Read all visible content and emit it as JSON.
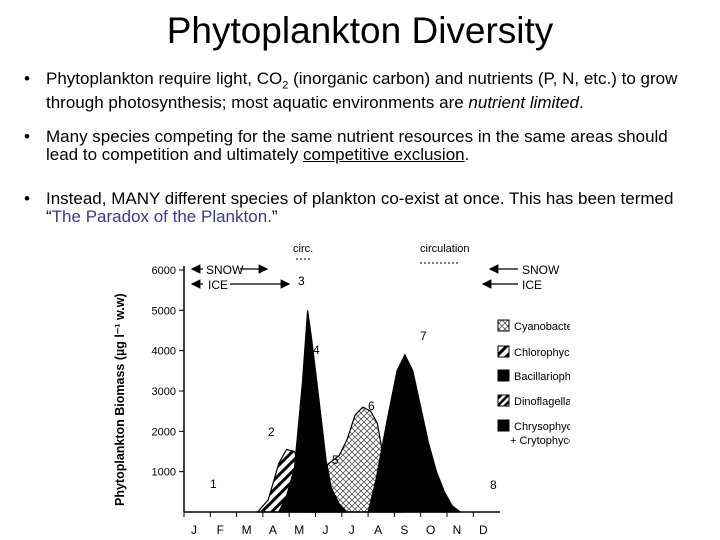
{
  "slide": {
    "title": "Phytoplankton Diversity",
    "bullets": [
      {
        "marker": "•",
        "pre": "Phytoplankton require light, CO",
        "sub": "2",
        "mid": " (inorganic carbon) and nutrients (P, N, etc.) to grow through photosynthesis; most aquatic environments are ",
        "emph": "nutrient limited",
        "post": "."
      },
      {
        "marker": "•",
        "pre": "Many species competing for the same nutrient resources in the same areas should lead to competition and ultimately ",
        "emph": "competitive exclusion",
        "post": "."
      },
      {
        "marker": "•",
        "pre": "Instead, MANY different species of plankton co-exist at once.  This has been termed “",
        "emph": "The Paradox of the Plankton.",
        "post": "”"
      }
    ]
  },
  "chart_data": {
    "type": "area",
    "ylabel": "Phytoplankton Biomass (µg l⁻¹ w.w)",
    "yticks": [
      1000,
      2000,
      3000,
      4000,
      5000,
      6000
    ],
    "ylim": [
      0,
      6200
    ],
    "months": [
      "J",
      "F",
      "M",
      "A",
      "M",
      "J",
      "J",
      "A",
      "S",
      "O",
      "N",
      "D"
    ],
    "legend": [
      {
        "label": "Cyanobacteria",
        "pattern": "hatch-light"
      },
      {
        "label": "Chlorophyceae",
        "pattern": "hatch-diagonal"
      },
      {
        "label": "Bacillariophyceae",
        "pattern": "solid"
      },
      {
        "label": "Dinoflagellates",
        "pattern": "hatch-bold"
      },
      {
        "label": "Chrysophyceae",
        "label2": "+ Crytophyceae",
        "pattern": "solid"
      }
    ],
    "annotations": {
      "snow": "SNOW",
      "ice": "ICE",
      "circ": "circ.",
      "circulation": "circulation",
      "peak_labels": [
        "1",
        "2",
        "3",
        "4",
        "5",
        "6",
        "7",
        "8"
      ]
    },
    "series": [
      {
        "name": "Chlorophyceae",
        "pattern": "hatch-diagonal",
        "x": [
          2.8,
          3.2,
          3.6,
          3.9,
          4.2,
          4.5,
          4.8,
          5.0
        ],
        "y": [
          0,
          300,
          1200,
          1550,
          1500,
          900,
          300,
          0
        ]
      },
      {
        "name": "Bacillariophyceae",
        "pattern": "solid",
        "x": [
          3.6,
          3.9,
          4.2,
          4.5,
          4.7,
          4.85,
          5.0,
          5.2,
          5.4,
          5.6,
          5.9,
          6.2
        ],
        "y": [
          0,
          400,
          1100,
          3200,
          5000,
          4300,
          3500,
          2400,
          1300,
          600,
          200,
          0
        ]
      },
      {
        "name": "Cyanobacteria",
        "pattern": "hatch-light",
        "x": [
          4.7,
          5.0,
          5.5,
          5.9,
          6.2,
          6.5,
          6.8,
          7.1,
          7.35,
          7.6,
          7.9,
          8.1,
          8.4
        ],
        "y": [
          0,
          700,
          1200,
          1400,
          1800,
          2400,
          2600,
          2500,
          2200,
          1300,
          500,
          200,
          0
        ]
      },
      {
        "name": "Bacillariophyceae (autumn)",
        "pattern": "solid",
        "x": [
          7.0,
          7.3,
          7.7,
          8.1,
          8.4,
          8.7,
          9.0,
          9.3,
          9.6,
          9.9,
          10.2,
          10.5
        ],
        "y": [
          0,
          800,
          2200,
          3500,
          3900,
          3500,
          2600,
          1700,
          1000,
          500,
          150,
          0
        ]
      }
    ]
  }
}
